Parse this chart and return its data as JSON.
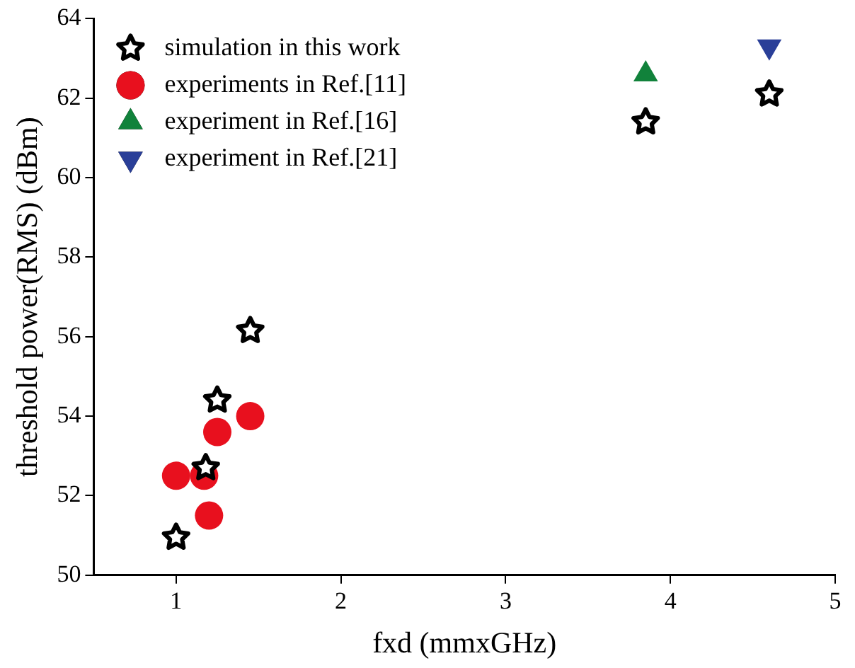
{
  "chart_data": {
    "type": "scatter",
    "xlabel": "fxd (mmxGHz)",
    "ylabel": "threshold power(RMS) (dBm)",
    "xlim": [
      0.5,
      5
    ],
    "xticks": [
      1,
      2,
      3,
      4,
      5
    ],
    "ylim": [
      50,
      64
    ],
    "yticks": [
      50,
      52,
      54,
      56,
      58,
      60,
      62,
      64
    ],
    "grid": false,
    "legend": "top left",
    "series": [
      {
        "name": "simulation in this work",
        "color": "#000000",
        "marker": "star",
        "x": [
          1.0,
          1.18,
          1.25,
          1.45,
          3.85,
          4.6
        ],
        "values": [
          50.95,
          52.7,
          54.4,
          56.15,
          61.4,
          62.1
        ]
      },
      {
        "name": "experiments in Ref.[11]",
        "color": "#e8101e",
        "marker": "circle",
        "x": [
          1.0,
          1.17,
          1.2,
          1.25,
          1.45
        ],
        "values": [
          52.5,
          52.5,
          51.5,
          53.6,
          54.0
        ]
      },
      {
        "name": "experiment in Ref.[16]",
        "color": "#11823b",
        "marker": "triangle",
        "x": [
          3.85
        ],
        "values": [
          62.6
        ]
      },
      {
        "name": "experiment in Ref.[21]",
        "color": "#2a3f98",
        "marker": "triangle-down",
        "x": [
          4.6
        ],
        "values": [
          63.3
        ]
      }
    ]
  }
}
